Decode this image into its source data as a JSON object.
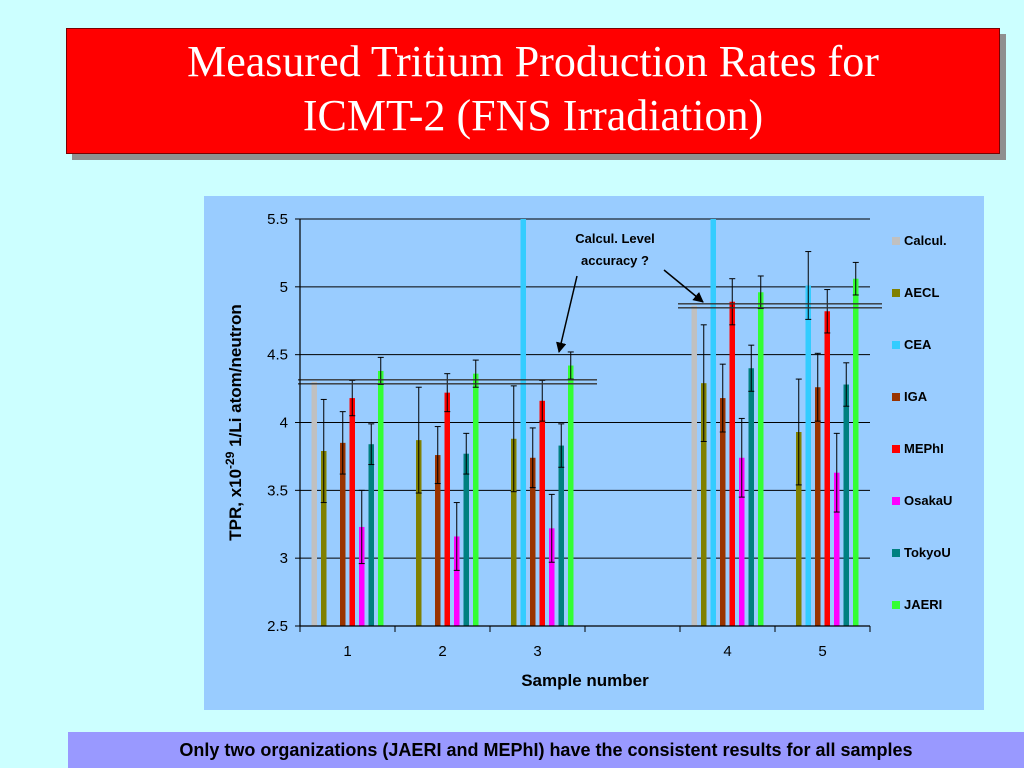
{
  "slide": {
    "title_line1": "Measured Tritium Production Rates for",
    "title_line2": "ICMT-2 (FNS Irradiation)",
    "footer": "Only two organizations (JAERI and MEPhI) have the consistent results for all samples"
  },
  "chart_data": {
    "type": "bar",
    "title": "",
    "xlabel": "Sample number",
    "ylabel_main": "TPR, x10",
    "ylabel_exp": "-29",
    "ylabel_rest": " 1/Li atom/neutron",
    "ylim": [
      2.5,
      5.5
    ],
    "yticks": [
      "2.5",
      "3",
      "3.5",
      "4",
      "4.5",
      "5",
      "5.5"
    ],
    "categories": [
      "1",
      "2",
      "3",
      "",
      "4",
      "5"
    ],
    "grid": "horizontal",
    "legend_position": "right",
    "series": [
      {
        "name": "Calcul.",
        "color": "#c0c0c0",
        "values": [
          4.3,
          null,
          null,
          null,
          4.86,
          null
        ],
        "errors": [
          0,
          null,
          null,
          null,
          0,
          null
        ]
      },
      {
        "name": "AECL",
        "color": "#808000",
        "values": [
          3.79,
          3.87,
          3.88,
          null,
          4.29,
          3.93
        ],
        "errors": [
          0.38,
          0.39,
          0.39,
          null,
          0.43,
          0.39
        ]
      },
      {
        "name": "CEA",
        "color": "#33ccff",
        "values": [
          null,
          null,
          5.5,
          null,
          5.5,
          5.01
        ],
        "errors": [
          null,
          null,
          0,
          null,
          0,
          0.25
        ]
      },
      {
        "name": "IGA",
        "color": "#993300",
        "values": [
          3.85,
          3.76,
          3.74,
          null,
          4.18,
          4.26
        ],
        "errors": [
          0.23,
          0.21,
          0.22,
          null,
          0.25,
          0.25
        ]
      },
      {
        "name": "MEPhI",
        "color": "#ff0000",
        "values": [
          4.18,
          4.22,
          4.16,
          null,
          4.89,
          4.82
        ],
        "errors": [
          0.13,
          0.14,
          0.15,
          null,
          0.17,
          0.16
        ]
      },
      {
        "name": "OsakaU",
        "color": "#ff00ff",
        "values": [
          3.23,
          3.16,
          3.22,
          null,
          3.74,
          3.63
        ],
        "errors": [
          0.27,
          0.25,
          0.25,
          null,
          0.29,
          0.29
        ]
      },
      {
        "name": "TokyoU",
        "color": "#008080",
        "values": [
          3.84,
          3.77,
          3.83,
          null,
          4.4,
          4.28
        ],
        "errors": [
          0.15,
          0.15,
          0.16,
          null,
          0.17,
          0.16
        ]
      },
      {
        "name": "JAERI",
        "color": "#33ff33",
        "values": [
          4.38,
          4.36,
          4.42,
          null,
          4.96,
          5.06
        ],
        "errors": [
          0.1,
          0.1,
          0.1,
          null,
          0.12,
          0.12
        ]
      }
    ],
    "calc_levels": [
      {
        "value": 4.3,
        "category_span": [
          "1",
          "3"
        ]
      },
      {
        "value": 4.86,
        "category_span": [
          "4",
          "5"
        ]
      }
    ],
    "annotation": {
      "line1": "Calcul. Level",
      "line2": "accuracy ?"
    }
  }
}
